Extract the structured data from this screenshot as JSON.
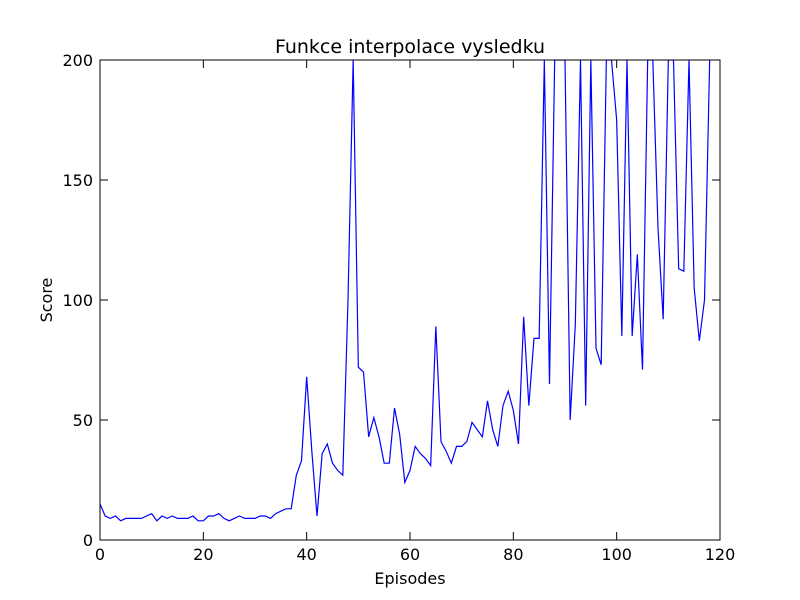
{
  "chart_data": {
    "type": "line",
    "title": "Funkce interpolace vysledku",
    "xlabel": "Episodes",
    "ylabel": "Score",
    "xlim": [
      0,
      120
    ],
    "ylim": [
      0,
      200
    ],
    "xticks": [
      0,
      20,
      40,
      60,
      80,
      100,
      120
    ],
    "yticks": [
      0,
      50,
      100,
      150,
      200
    ],
    "xtick_labels": [
      "0",
      "20",
      "40",
      "60",
      "80",
      "100",
      "120"
    ],
    "ytick_labels": [
      "0",
      "50",
      "100",
      "150",
      "200"
    ],
    "grid": false,
    "legend": "none",
    "series": [
      {
        "color": "#0000ff",
        "x": [
          0,
          1,
          2,
          3,
          4,
          5,
          6,
          7,
          8,
          9,
          10,
          11,
          12,
          13,
          14,
          15,
          16,
          17,
          18,
          19,
          20,
          21,
          22,
          23,
          24,
          25,
          26,
          27,
          28,
          29,
          30,
          31,
          32,
          33,
          34,
          35,
          36,
          37,
          38,
          39,
          40,
          41,
          42,
          43,
          44,
          45,
          46,
          47,
          48,
          49,
          50,
          51,
          52,
          53,
          54,
          55,
          56,
          57,
          58,
          59,
          60,
          61,
          62,
          63,
          64,
          65,
          66,
          67,
          68,
          69,
          70,
          71,
          72,
          73,
          74,
          75,
          76,
          77,
          78,
          79,
          80,
          81,
          82,
          83,
          84,
          85,
          86,
          87,
          88,
          89,
          90,
          91,
          92,
          93,
          94,
          95,
          96,
          97,
          98,
          99,
          100,
          101,
          102,
          103,
          104,
          105,
          106,
          107,
          108,
          109,
          110,
          111,
          112,
          113,
          114,
          115,
          116,
          117,
          118
        ],
        "y": [
          15,
          10,
          9,
          10,
          8,
          9,
          9,
          9,
          9,
          10,
          11,
          8,
          10,
          9,
          10,
          9,
          9,
          9,
          10,
          8,
          8,
          10,
          10,
          11,
          9,
          8,
          9,
          10,
          9,
          9,
          9,
          10,
          10,
          9,
          11,
          12,
          13,
          13,
          27,
          33,
          68,
          37,
          10,
          36,
          40,
          32,
          29,
          27,
          100,
          200,
          72,
          70,
          43,
          51,
          43,
          32,
          32,
          55,
          44,
          24,
          29,
          39,
          36,
          34,
          31,
          89,
          41,
          37,
          32,
          39,
          39,
          41,
          49,
          46,
          43,
          58,
          46,
          39,
          56,
          62,
          54,
          40,
          93,
          56,
          84,
          84,
          200,
          65,
          200,
          200,
          200,
          50,
          90,
          200,
          56,
          200,
          80,
          73,
          200,
          200,
          175,
          85,
          200,
          85,
          119,
          71,
          200,
          200,
          130,
          92,
          200,
          200,
          113,
          112,
          200,
          105,
          83,
          100,
          200
        ]
      }
    ]
  }
}
